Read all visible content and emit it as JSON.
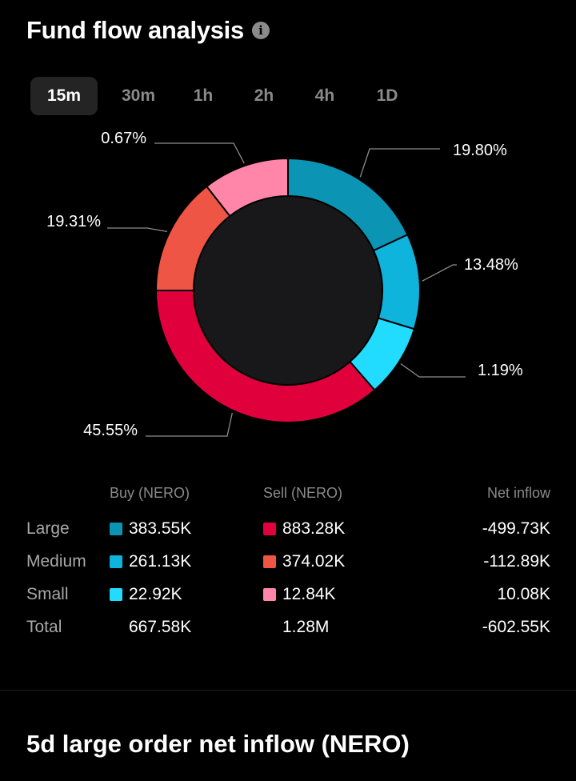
{
  "header": {
    "title": "Fund flow analysis",
    "info_icon": "info-icon"
  },
  "tabs": [
    {
      "label": "15m",
      "active": true
    },
    {
      "label": "30m",
      "active": false
    },
    {
      "label": "1h",
      "active": false
    },
    {
      "label": "2h",
      "active": false
    },
    {
      "label": "4h",
      "active": false
    },
    {
      "label": "1D",
      "active": false
    }
  ],
  "chart_data": {
    "type": "pie",
    "donut": true,
    "slices": [
      {
        "label": "19.80%",
        "value": 19.8,
        "color": "#0b94b4"
      },
      {
        "label": "13.48%",
        "value": 13.48,
        "color": "#0eb4dc"
      },
      {
        "label": "1.19%",
        "value": 1.19,
        "color": "#22dcff"
      },
      {
        "label": "45.55%",
        "value": 45.55,
        "color": "#e0003c"
      },
      {
        "label": "19.31%",
        "value": 19.31,
        "color": "#ee5544"
      },
      {
        "label": "0.67%",
        "value": 0.67,
        "color": "#ff86a8"
      }
    ]
  },
  "table": {
    "headers": {
      "buy": "Buy (NERO)",
      "sell": "Sell (NERO)",
      "net": "Net inflow"
    },
    "rows": [
      {
        "label": "Large",
        "buy": "383.55K",
        "buy_color": "#0b94b4",
        "sell": "883.28K",
        "sell_color": "#e0003c",
        "net": "-499.73K"
      },
      {
        "label": "Medium",
        "buy": "261.13K",
        "buy_color": "#0eb4dc",
        "sell": "374.02K",
        "sell_color": "#ee5544",
        "net": "-112.89K"
      },
      {
        "label": "Small",
        "buy": "22.92K",
        "buy_color": "#22dcff",
        "sell": "12.84K",
        "sell_color": "#ff86a8",
        "net": "10.08K"
      },
      {
        "label": "Total",
        "buy": "667.58K",
        "sell": "1.28M",
        "net": "-602.55K"
      }
    ]
  },
  "section": {
    "title": "5d large order net inflow (NERO)"
  }
}
